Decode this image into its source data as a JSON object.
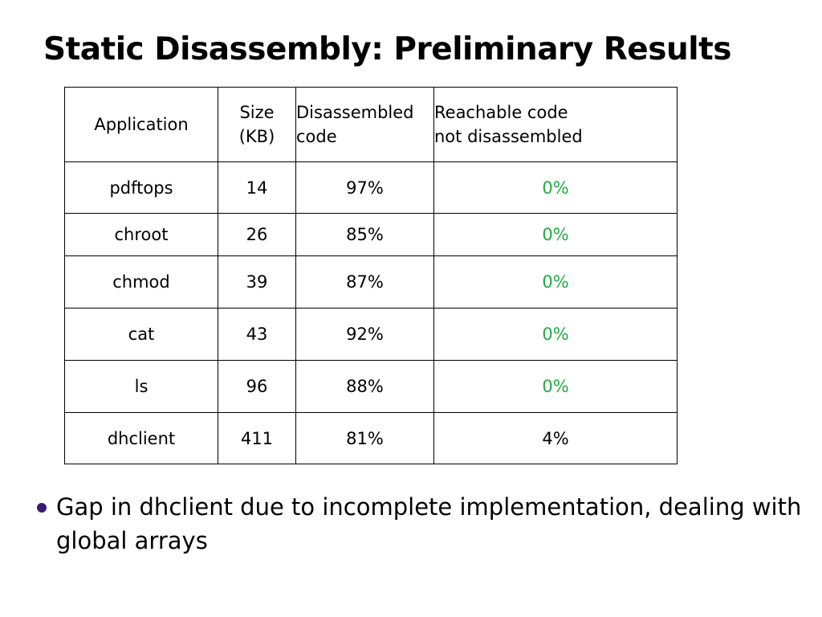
{
  "slide": {
    "title": "Static Disassembly: Preliminary Results"
  },
  "table": {
    "headers": {
      "application": "Application",
      "size_line1": "Size",
      "size_line2": "(KB)",
      "disassembled_line1": "Disassembled",
      "disassembled_line2": "code",
      "reachable_line1": "Reachable code",
      "reachable_line2": "not disassembled"
    },
    "rows": [
      {
        "application": "pdftops",
        "size": "14",
        "disassembled": "97%",
        "reachable": "0%",
        "reachable_color": "#22aa44"
      },
      {
        "application": "chroot",
        "size": "26",
        "disassembled": "85%",
        "reachable": "0%",
        "reachable_color": "#22aa44"
      },
      {
        "application": "chmod",
        "size": "39",
        "disassembled": "87%",
        "reachable": "0%",
        "reachable_color": "#22aa44"
      },
      {
        "application": "cat",
        "size": "43",
        "disassembled": "92%",
        "reachable": "0%",
        "reachable_color": "#22aa44"
      },
      {
        "application": "ls",
        "size": "96",
        "disassembled": "88%",
        "reachable": "0%",
        "reachable_color": "#22aa44"
      },
      {
        "application": "dhclient",
        "size": "411",
        "disassembled": "81%",
        "reachable": "4%",
        "reachable_color": "#000000"
      }
    ]
  },
  "bullets": [
    {
      "text": "Gap in dhclient due to incomplete implementation, dealing with global arrays",
      "bullet_color": "#3b1a78"
    }
  ]
}
